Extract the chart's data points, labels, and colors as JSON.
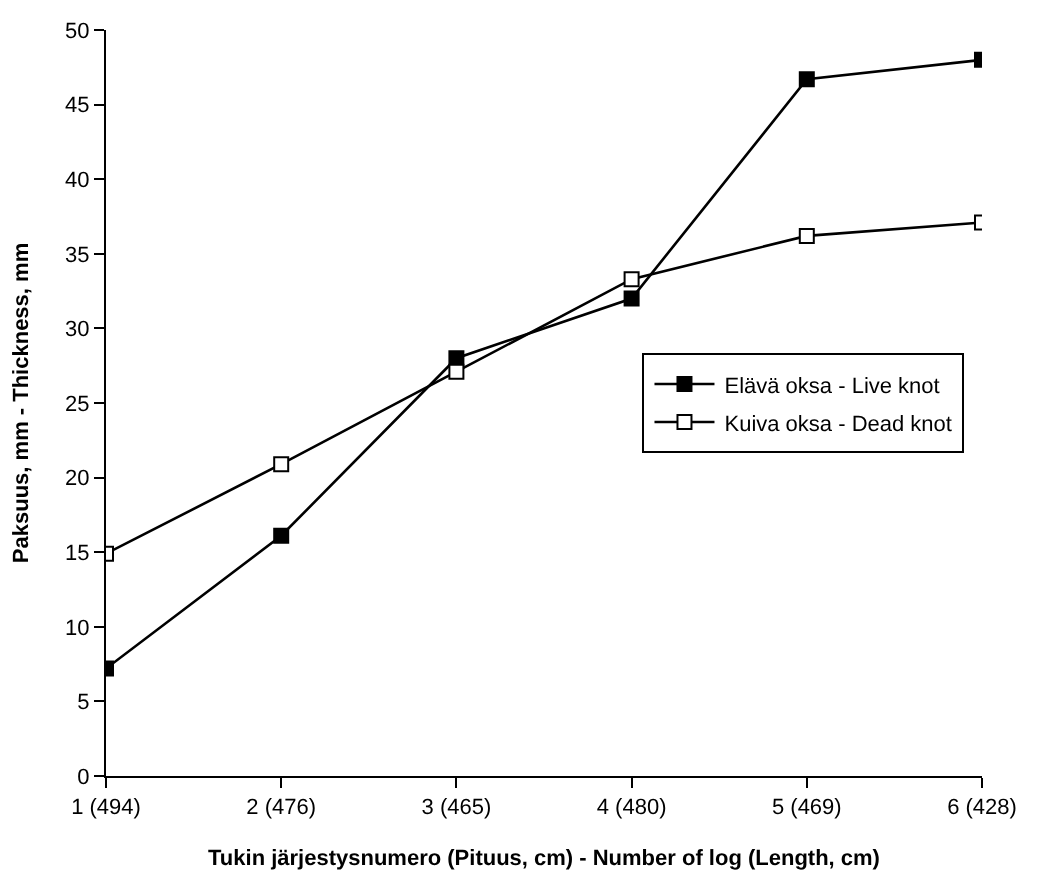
{
  "chart_data": {
    "type": "line",
    "xlabel": "Tukin järjestysnumero (Pituus, cm) - Number of log (Length, cm)",
    "ylabel": "Paksuus, mm - Thickness, mm",
    "categories": [
      "1 (494)",
      "2 (476)",
      "3 (465)",
      "4 (480)",
      "5 (469)",
      "6 (428)"
    ],
    "series": [
      {
        "name": "Elävä oksa - Live knot",
        "color": "#000000",
        "values": [
          7.2,
          16.1,
          28.0,
          32.0,
          46.7,
          48.0
        ]
      },
      {
        "name": "Kuiva oksa - Dead knot",
        "color": "#000000",
        "values": [
          14.9,
          20.9,
          27.1,
          33.3,
          36.2,
          37.1
        ]
      }
    ],
    "ylim": [
      0,
      50
    ],
    "yticks": [
      0,
      5,
      10,
      15,
      20,
      25,
      30,
      35,
      40,
      45,
      50
    ],
    "legend": "right",
    "marker": "square",
    "line_style": "solid"
  }
}
